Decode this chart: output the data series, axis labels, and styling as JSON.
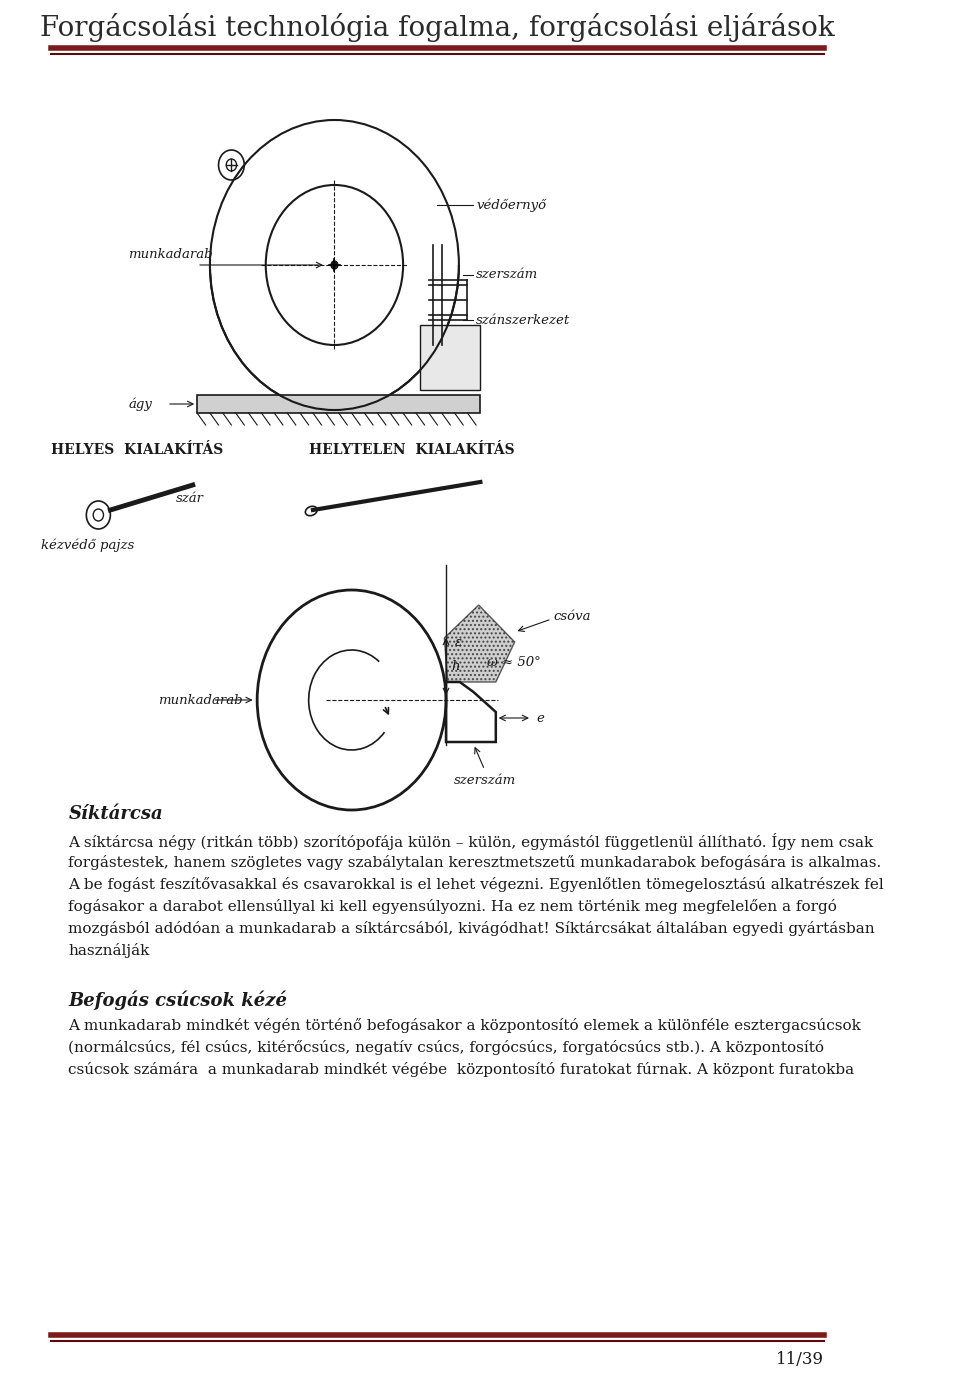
{
  "title": "Forgácsolási technológia fogalma, forgácsolási eljárások",
  "title_color": "#2b2b2b",
  "title_fontsize": 20,
  "header_line_color1": "#7b1a1a",
  "header_line_color2": "#5a0a0a",
  "footer_line_color1": "#7b1a1a",
  "footer_line_color2": "#5a0a0a",
  "page_number": "11/39",
  "background_color": "#ffffff",
  "text_color": "#1a1a1a",
  "body_fontsize": 11,
  "section_title_fontsize": 13,
  "label_fontsize": 9.5,
  "diagram_label_fontsize": 9,
  "helyes_label": "HELYES  KIALAKÍTÁS",
  "helytelen_label": "HELYTELEN  KIALAKÍTÁS",
  "szar_label": "szár",
  "kezvedo_label": "kézvédő pajzs",
  "munkadarab_label1": "munkadarab",
  "agy_label": "ágy",
  "vedoernyo_label": "védőernyő",
  "szerszam_label1": "szerszám",
  "szanszerkezet_label": "szánszerkezet",
  "munkadarab_label2": "munkadarab",
  "csova_label": "csóva",
  "szerszam_label2": "szerszám",
  "omega_label": "ω ≈ 50°",
  "e_label": "e",
  "eps_label": "ε",
  "h_label": "h",
  "siktarcsa_title": "Síktárcsa",
  "siktarcsa_text": "A síktárcsa négy (ritkán több) szorítópofája külön – külön, egymástól függetlenül állítható. Így nem csak\nforgástestek, hanem szögletes vagy szabálytalan keresztmetszetű munkadarabok befogására is alkalmas.\nA be fogást feszítővasakkal és csavarokkal is el lehet végezni. Egyenlőtlen tömegelosztású alkatrészek fel\nfogásakor a darabot ellensúllyal ki kell egyensúlyozni. Ha ez nem történik meg megfelelően a forgó\nmozgásból adódóan a munkadarab a síktárcsából, kivágódhat! Síktárcsákat általában egyedi gyártásban\nhasználják",
  "befogascsucsokkeze_title": "Befogás csúcsok kézé",
  "befogascsucsokkeze_text": "A munkadarab mindkét végén történő befogásakor a központosító elemek a különféle esztergacsúcsok\n(normálcsúcs, fél csúcs, kitérőcsúcs, negatív csúcs, forgócsúcs, forgatócsúcs stb.). A központosító\ncsúcsok számára  a munkadarab mindkét végébe  központosító furatokat fúrnak. A központ furatokba"
}
